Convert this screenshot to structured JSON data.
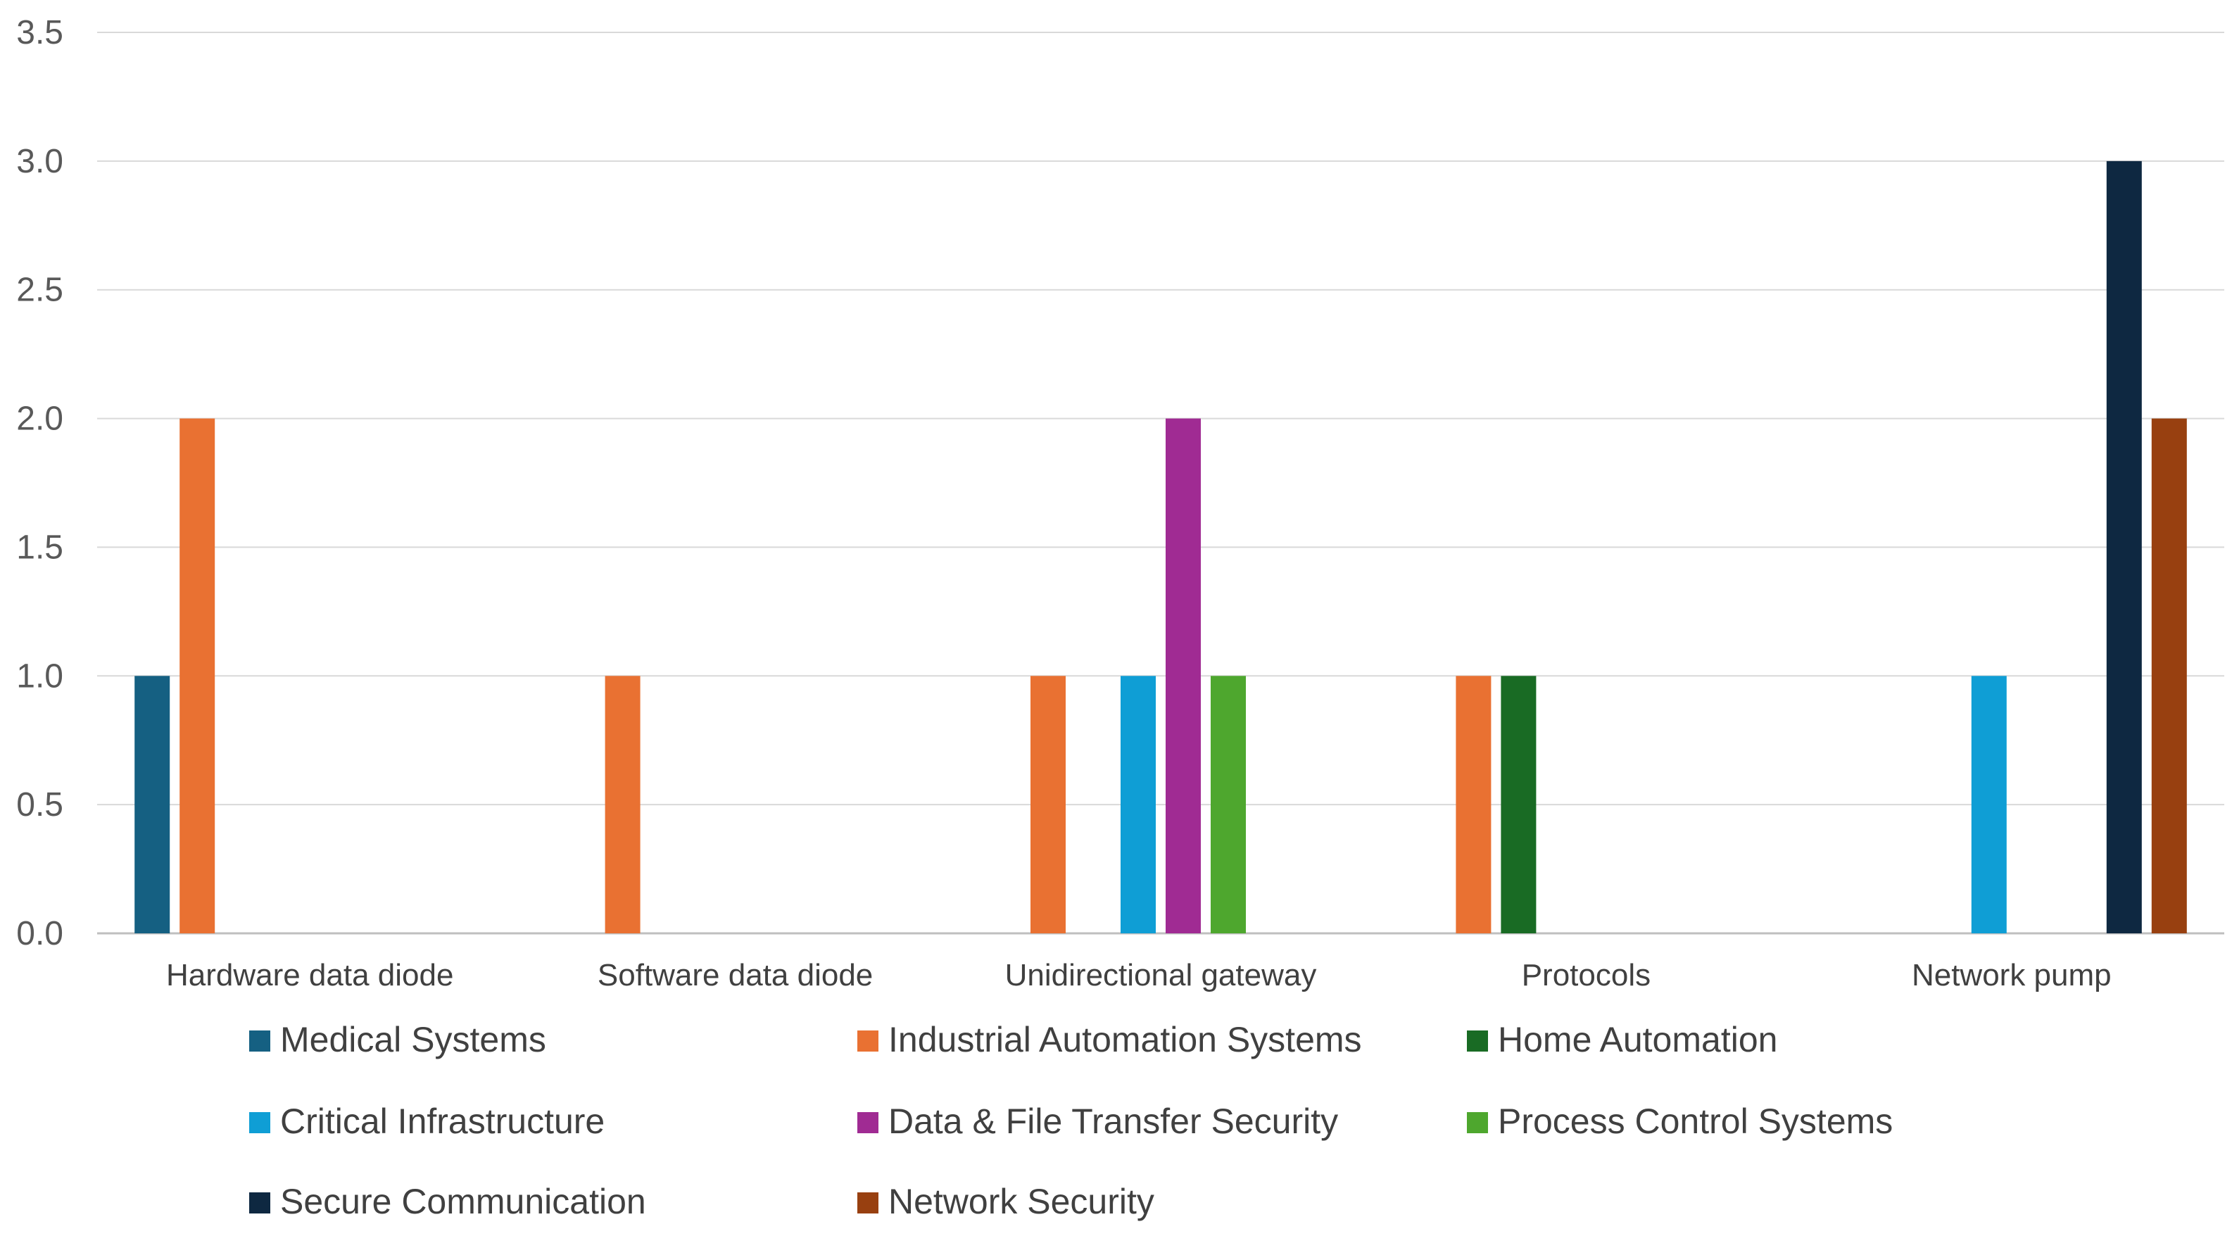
{
  "chart_data": {
    "type": "bar",
    "title": "",
    "xlabel": "",
    "ylabel": "",
    "ylim": [
      0,
      3.5
    ],
    "y_ticks": [
      "0.0",
      "0.5",
      "1.0",
      "1.5",
      "2.0",
      "2.5",
      "3.0",
      "3.5"
    ],
    "grid": true,
    "legend_position": "bottom",
    "categories": [
      "Hardware data diode",
      "Software data diode",
      "Unidirectional gateway",
      "Protocols",
      "Network pump"
    ],
    "series": [
      {
        "name": "Medical Systems",
        "color": "#156082",
        "values": [
          1,
          0,
          0,
          0,
          0
        ]
      },
      {
        "name": "Industrial Automation Systems",
        "color": "#E97132",
        "values": [
          2,
          1,
          1,
          1,
          0
        ]
      },
      {
        "name": "Home Automation",
        "color": "#196B24",
        "values": [
          0,
          0,
          0,
          1,
          0
        ]
      },
      {
        "name": "Critical Infrastructure",
        "color": "#0F9ED5",
        "values": [
          0,
          0,
          1,
          0,
          1
        ]
      },
      {
        "name": "Data & File Transfer Security",
        "color": "#A02B93",
        "values": [
          0,
          0,
          2,
          0,
          0
        ]
      },
      {
        "name": "Process Control Systems",
        "color": "#4EA72E",
        "values": [
          0,
          0,
          1,
          0,
          0
        ]
      },
      {
        "name": "Secure Communication",
        "color": "#0E2841",
        "values": [
          0,
          0,
          0,
          0,
          3
        ]
      },
      {
        "name": "Network Security",
        "color": "#984010",
        "values": [
          0,
          0,
          0,
          0,
          2
        ]
      }
    ]
  }
}
